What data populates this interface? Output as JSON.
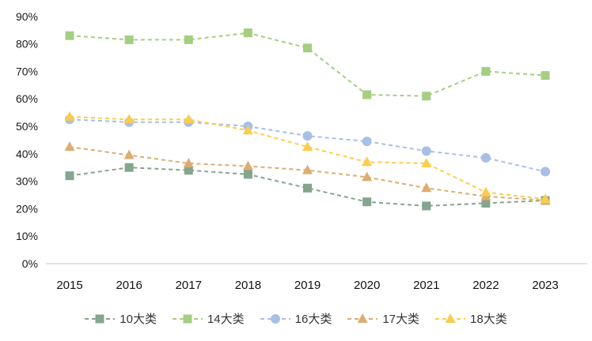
{
  "chart_data": {
    "type": "line",
    "title": "",
    "categories": [
      "2015",
      "2016",
      "2017",
      "2018",
      "2019",
      "2020",
      "2021",
      "2022",
      "2023"
    ],
    "series": [
      {
        "name": "10大类",
        "color": "#84A58E",
        "marker": "square",
        "values": [
          32,
          35,
          34,
          32.5,
          27.5,
          22.5,
          21,
          22,
          23
        ]
      },
      {
        "name": "14大类",
        "color": "#A5CE82",
        "marker": "square",
        "values": [
          83,
          81.5,
          81.5,
          84,
          78.5,
          61.5,
          61,
          70,
          68.5
        ]
      },
      {
        "name": "16大类",
        "color": "#A8BFE6",
        "marker": "circle",
        "values": [
          52.5,
          51.5,
          51.5,
          50,
          46.5,
          44.5,
          41,
          38.5,
          33.5
        ]
      },
      {
        "name": "17大类",
        "color": "#DDAD72",
        "marker": "triangle",
        "values": [
          42.5,
          39.5,
          36.5,
          35.5,
          34,
          31.5,
          27.5,
          24.5,
          23
        ]
      },
      {
        "name": "18大类",
        "color": "#FACD4D",
        "marker": "triangle",
        "values": [
          53.5,
          52.5,
          52.5,
          48.5,
          42.5,
          37,
          36.5,
          26,
          23.5
        ]
      }
    ],
    "y_axis": {
      "min": 0,
      "max": 90,
      "step": 10,
      "tick_labels": [
        "0%",
        "10%",
        "20%",
        "30%",
        "40%",
        "50%",
        "60%",
        "70%",
        "80%",
        "90%"
      ]
    },
    "x_axis": {
      "tick_labels": [
        "2015",
        "2016",
        "2017",
        "2018",
        "2019",
        "2020",
        "2021",
        "2022",
        "2023"
      ]
    },
    "style": {
      "line_style": "dashed",
      "grid": false,
      "legend_position": "bottom",
      "axis_line_color": "#d8d8d8"
    }
  }
}
